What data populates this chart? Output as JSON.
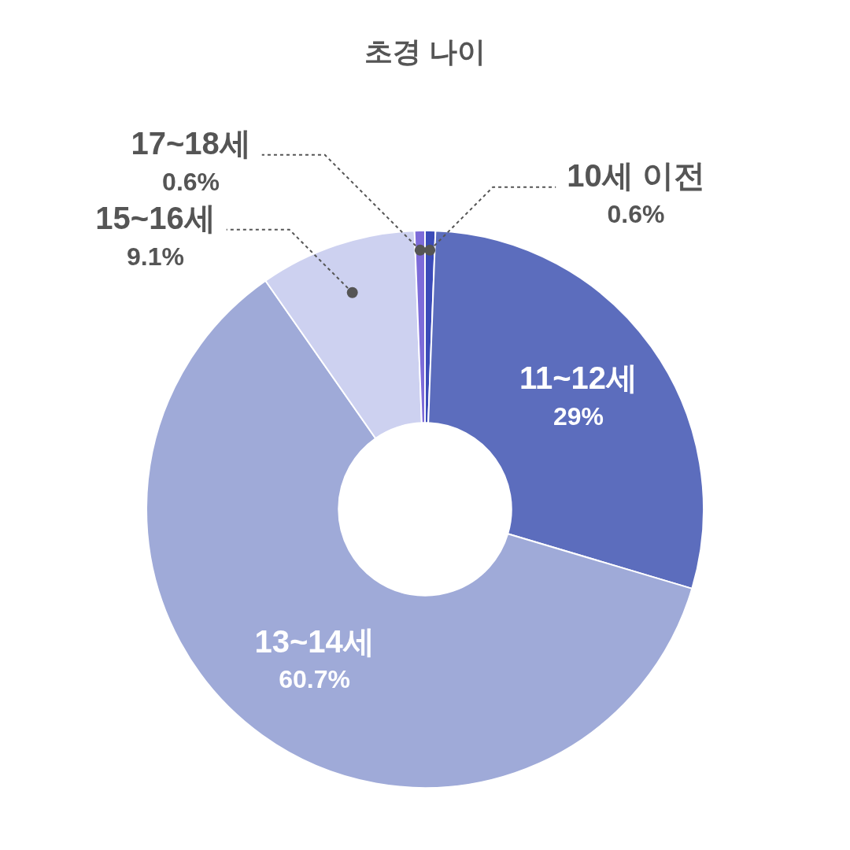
{
  "chart_data": {
    "type": "donut",
    "title": "초경 나이",
    "categories": [
      "10세 이전",
      "11~12세",
      "13~14세",
      "15~16세",
      "17~18세"
    ],
    "values": [
      0.6,
      29,
      60.7,
      9.1,
      0.6
    ],
    "value_labels": [
      "0.6%",
      "29%",
      "60.7%",
      "9.1%",
      "0.6%"
    ],
    "colors": [
      "#3b4bb8",
      "#5c6dbd",
      "#9faad8",
      "#cdd1f0",
      "#7d6bd9"
    ]
  }
}
